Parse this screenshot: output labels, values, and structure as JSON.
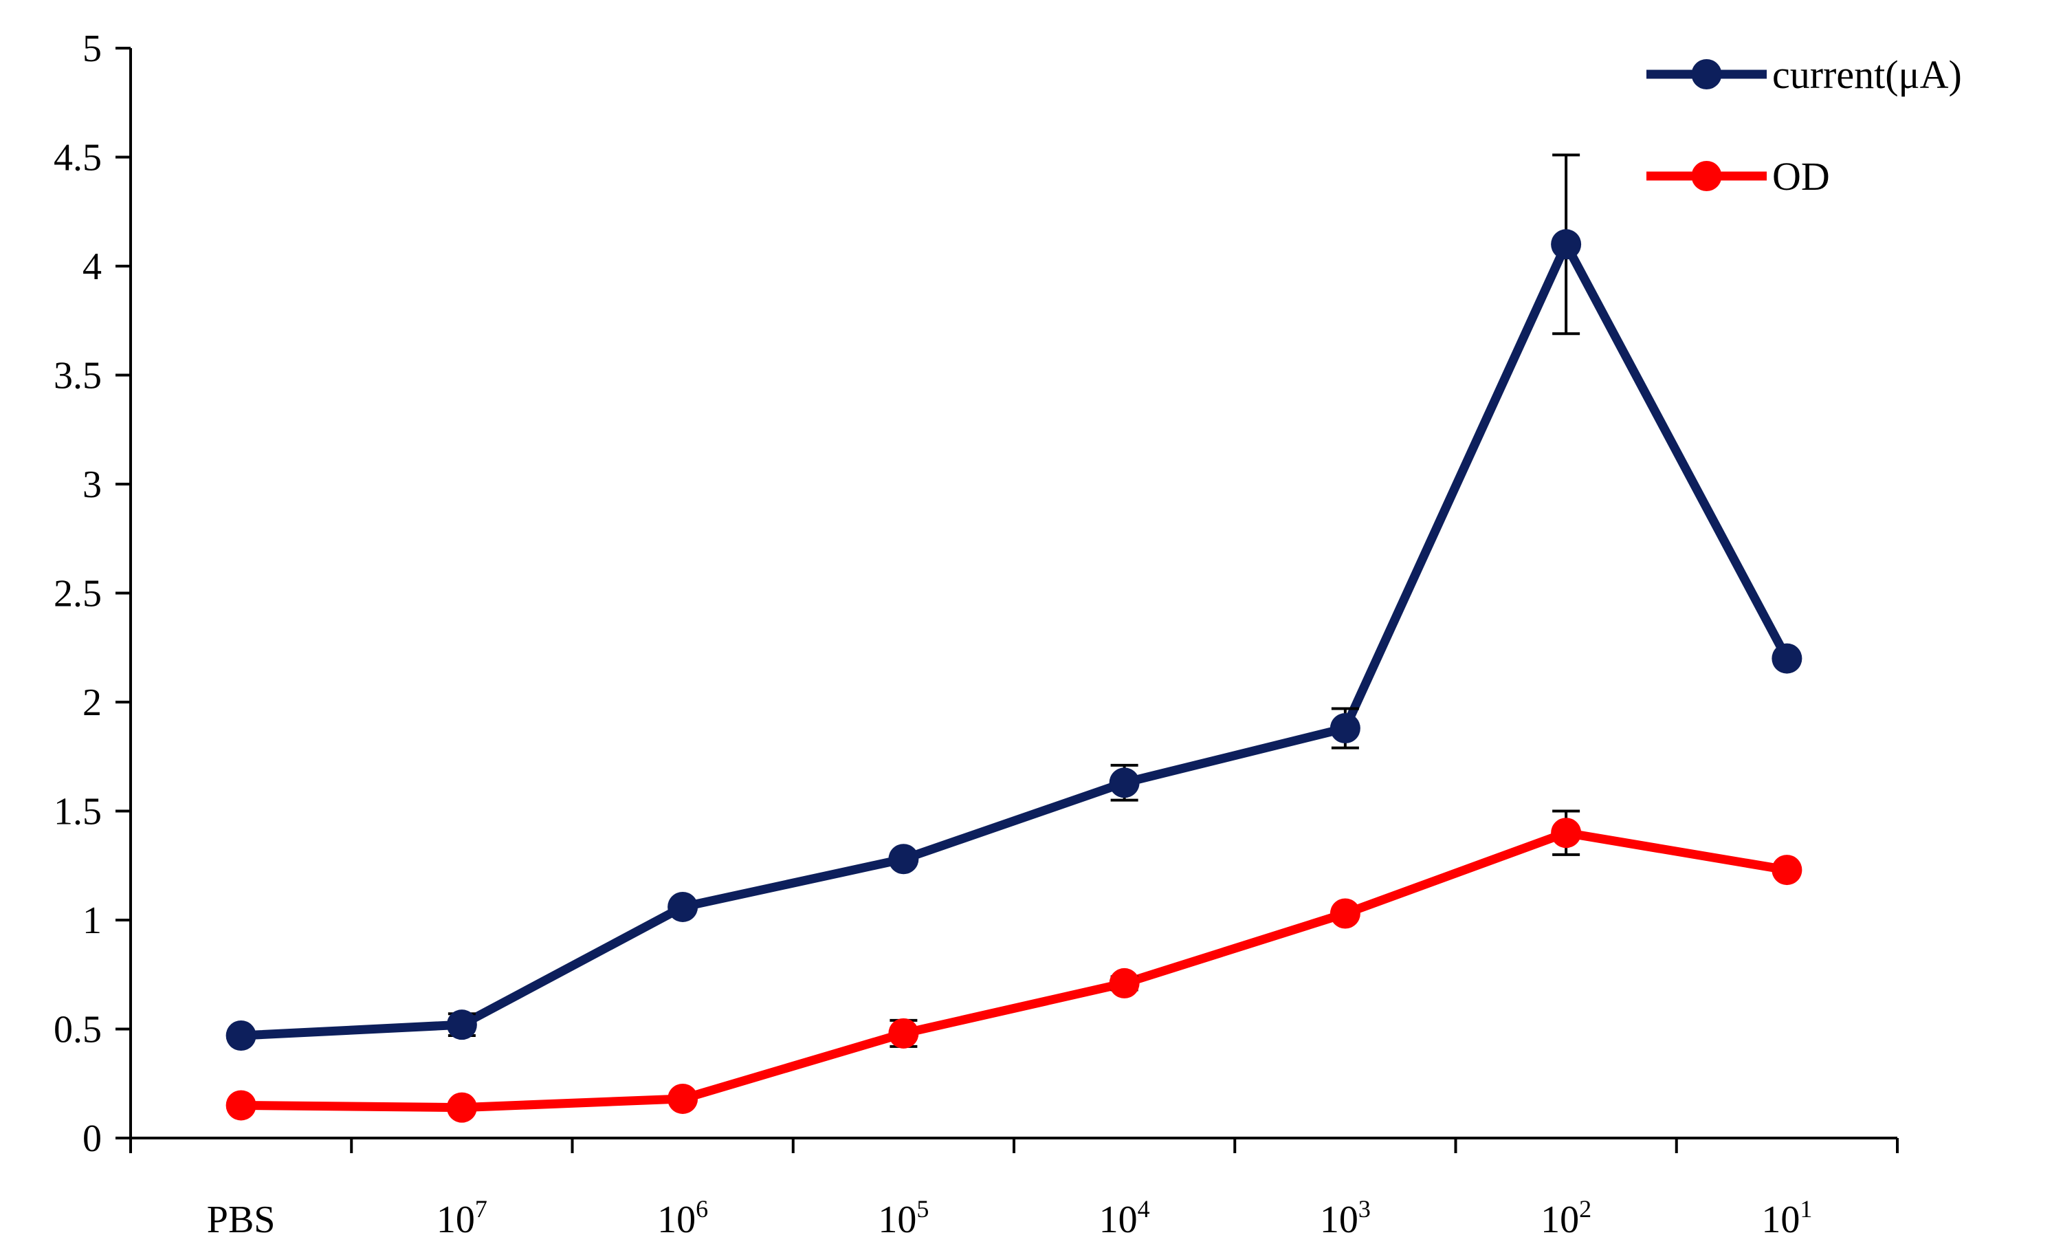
{
  "chart_data": {
    "type": "line",
    "title": "",
    "xlabel": "",
    "ylabel": "",
    "categories": [
      {
        "base": "PBS",
        "sup": ""
      },
      {
        "base": "10",
        "sup": "7"
      },
      {
        "base": "10",
        "sup": "6"
      },
      {
        "base": "10",
        "sup": "5"
      },
      {
        "base": "10",
        "sup": "4"
      },
      {
        "base": "10",
        "sup": "3"
      },
      {
        "base": "10",
        "sup": "2"
      },
      {
        "base": "10",
        "sup": "1"
      }
    ],
    "ylim": [
      0,
      5
    ],
    "yticks": [
      "0",
      "0.5",
      "1",
      "1.5",
      "2",
      "2.5",
      "3",
      "3.5",
      "4",
      "4.5",
      "5"
    ],
    "grid": false,
    "legend_position": "top-right",
    "series": [
      {
        "name": "current(μA)",
        "color": "#0d1f5c",
        "values": [
          0.47,
          0.52,
          1.06,
          1.28,
          1.63,
          1.88,
          4.1,
          2.2
        ],
        "errors": [
          0.02,
          0.05,
          0.02,
          0.02,
          0.08,
          0.09,
          0.41,
          0.0
        ]
      },
      {
        "name": "OD",
        "color": "#ff0000",
        "values": [
          0.15,
          0.14,
          0.18,
          0.48,
          0.71,
          1.03,
          1.4,
          1.23
        ],
        "errors": [
          0.0,
          0.0,
          0.0,
          0.06,
          0.03,
          0.0,
          0.1,
          0.0
        ]
      }
    ]
  }
}
